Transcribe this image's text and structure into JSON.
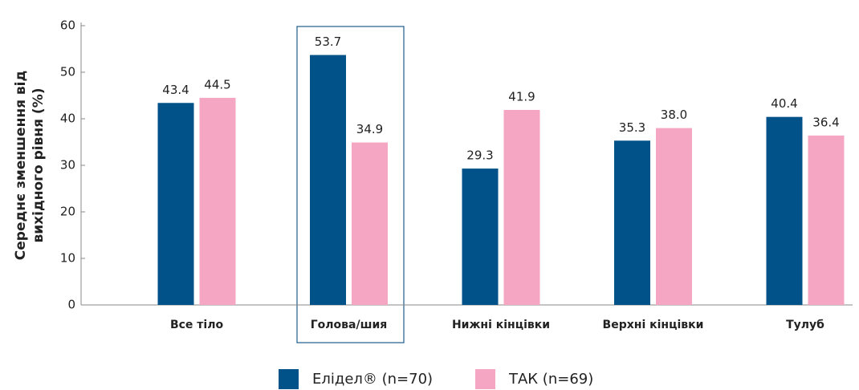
{
  "chart_data": {
    "type": "bar",
    "y_label": [
      "Середнє зменшення від",
      "вихідного рівня (%)"
    ],
    "categories": [
      "Все тіло",
      "Голова/шия",
      "Нижні кінцівки",
      "Верхні кінцівки",
      "Тулуб"
    ],
    "series": [
      {
        "name": "Елідел® (n=70)",
        "color": "#005288",
        "values": [
          43.4,
          53.7,
          29.3,
          35.3,
          40.4
        ],
        "value_labels": [
          "43.4",
          "53.7",
          "29.3",
          "35.3",
          "40.4"
        ]
      },
      {
        "name": "ТАК (n=69)",
        "color": "#f4a6c2",
        "values": [
          44.5,
          34.9,
          41.9,
          38.0,
          36.4
        ],
        "value_labels": [
          "44.5",
          "34.9",
          "41.9",
          "38.0",
          "36.4"
        ]
      }
    ],
    "ylim": [
      0,
      60
    ],
    "yticks": [
      0,
      10,
      20,
      30,
      40,
      50,
      60
    ],
    "grid": false,
    "legend": "bottom"
  }
}
